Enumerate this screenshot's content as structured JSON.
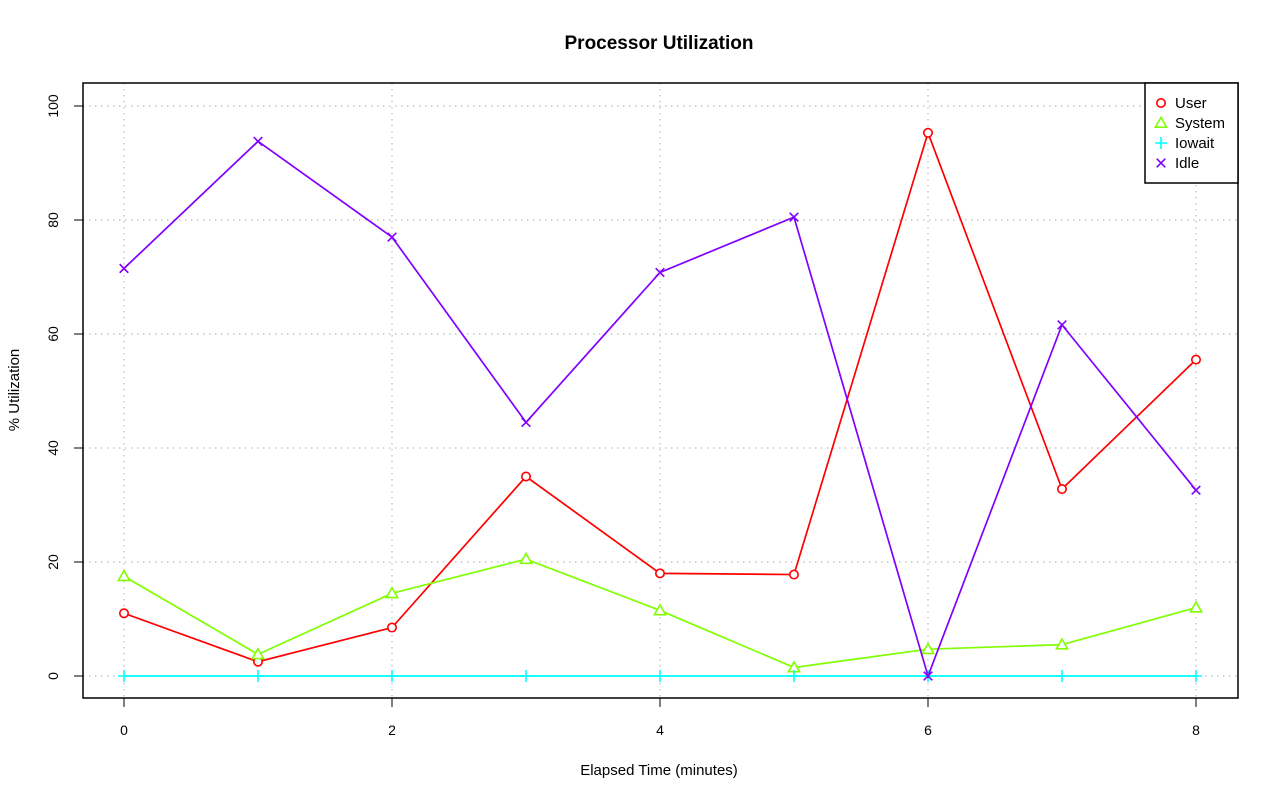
{
  "chart_data": {
    "type": "line",
    "title": "Processor Utilization",
    "xlabel": "Elapsed Time (minutes)",
    "ylabel": "% Utilization",
    "xlim": [
      0,
      8
    ],
    "ylim": [
      0,
      100
    ],
    "x_ticks": [
      0,
      2,
      4,
      6,
      8
    ],
    "y_ticks": [
      0,
      20,
      40,
      60,
      80,
      100
    ],
    "grid": true,
    "legend_position": "top-right",
    "x": [
      0,
      1,
      2,
      3,
      4,
      5,
      6,
      7,
      8
    ],
    "series": [
      {
        "name": "User",
        "color": "#ff0000",
        "marker": "circle",
        "values": [
          11.0,
          2.5,
          8.5,
          35.0,
          18.0,
          17.8,
          95.3,
          32.8,
          55.5
        ]
      },
      {
        "name": "System",
        "color": "#80ff00",
        "marker": "triangle",
        "values": [
          17.5,
          3.8,
          14.5,
          20.5,
          11.5,
          1.5,
          4.7,
          5.5,
          12.0
        ]
      },
      {
        "name": "Iowait",
        "color": "#00ffff",
        "marker": "plus",
        "values": [
          0,
          0,
          0,
          0,
          0,
          0,
          0,
          0,
          0
        ]
      },
      {
        "name": "Idle",
        "color": "#8000ff",
        "marker": "cross",
        "values": [
          71.5,
          93.8,
          77.0,
          44.5,
          70.8,
          80.5,
          0.0,
          61.6,
          32.6
        ]
      }
    ]
  }
}
